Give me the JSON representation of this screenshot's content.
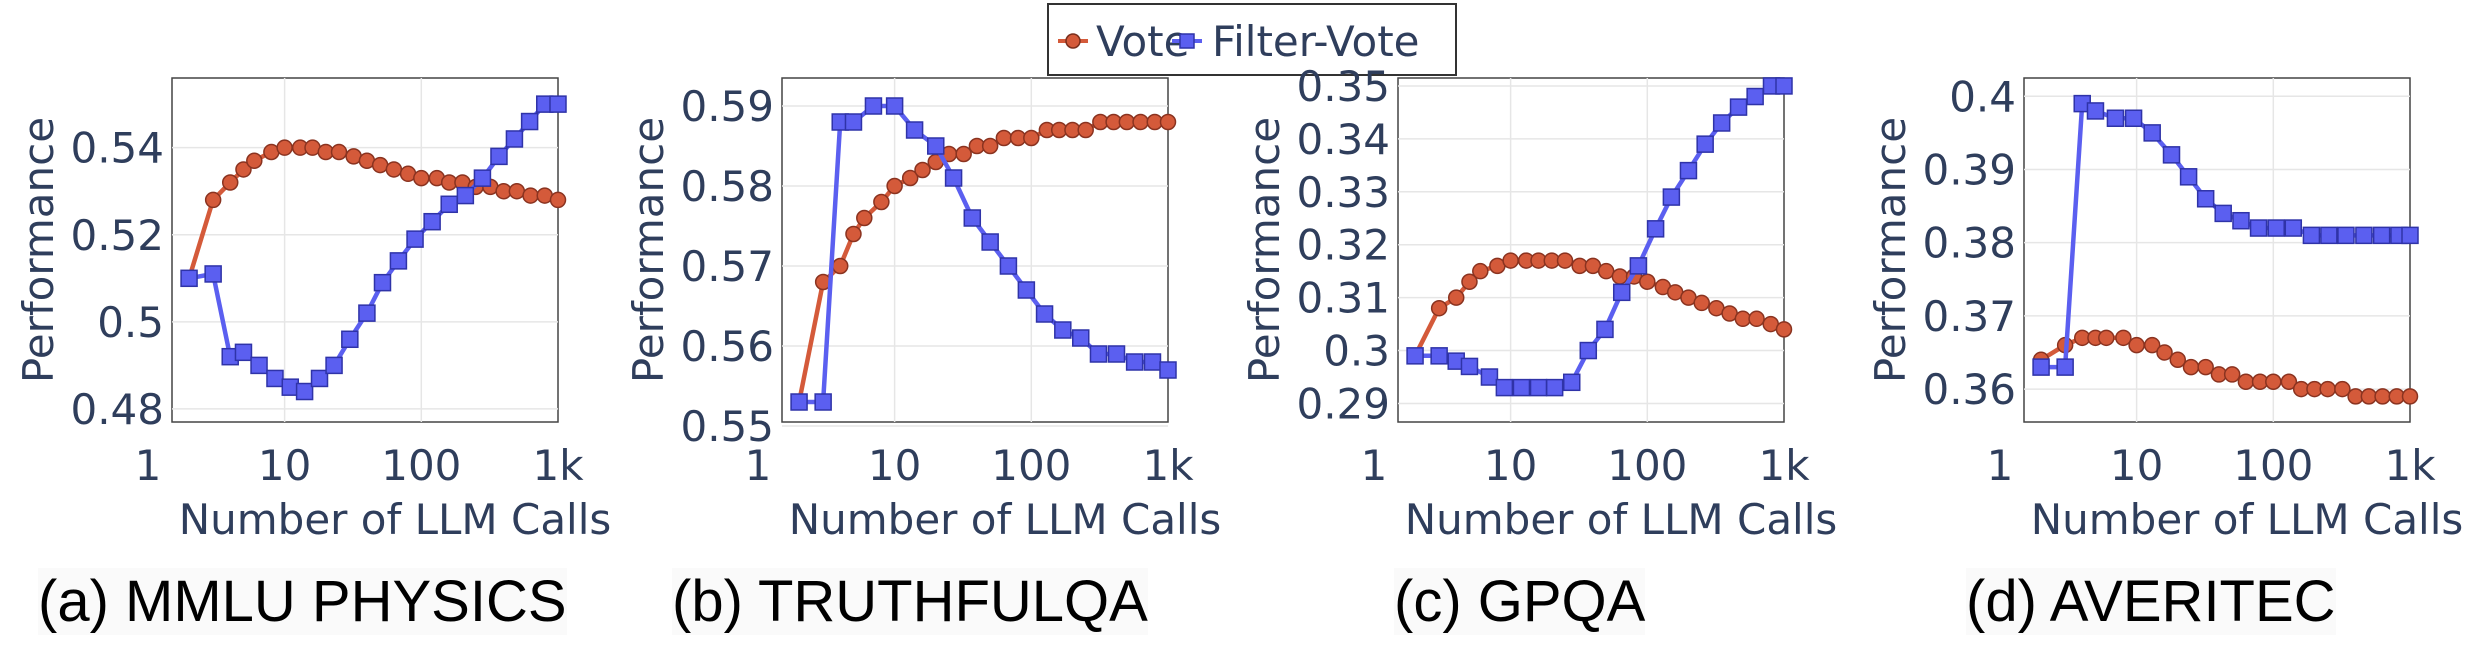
{
  "legend": {
    "items": [
      {
        "label": "Vote",
        "color": "#d45a3a",
        "marker": "circle"
      },
      {
        "label": "Filter-Vote",
        "color": "#5b5ff0",
        "marker": "square"
      }
    ],
    "placement": "top-center"
  },
  "colors": {
    "vote": "#d45a3a",
    "filter_vote": "#5b5ff0",
    "axis_text": "#2f3e5c",
    "grid": "#e6e6e6"
  },
  "chart_data": [
    {
      "type": "line",
      "caption": "(a) MMLU PHYSICS",
      "xlabel": "Number of LLM Calls",
      "ylabel": "Performance",
      "xscale": "log",
      "xlim": [
        1.5,
        1000
      ],
      "xticks": [
        1,
        10,
        100,
        1000
      ],
      "xtick_labels": [
        "1",
        "10",
        "100",
        "1k"
      ],
      "ylim": [
        0.477,
        0.556
      ],
      "yticks": [
        0.48,
        0.5,
        0.52,
        0.54
      ],
      "ytick_labels": [
        "0.48",
        "0.5",
        "0.52",
        "0.54"
      ],
      "grid": true,
      "series": [
        {
          "name": "Vote",
          "x": [
            2,
            3,
            4,
            5,
            6,
            8,
            10,
            13,
            16,
            20,
            25,
            32,
            40,
            50,
            63,
            80,
            100,
            130,
            160,
            200,
            250,
            320,
            400,
            500,
            630,
            800,
            1000
          ],
          "y": [
            0.51,
            0.528,
            0.532,
            0.535,
            0.537,
            0.539,
            0.54,
            0.54,
            0.54,
            0.539,
            0.539,
            0.538,
            0.537,
            0.536,
            0.535,
            0.534,
            0.533,
            0.533,
            0.532,
            0.532,
            0.531,
            0.531,
            0.53,
            0.53,
            0.529,
            0.529,
            0.528
          ]
        },
        {
          "name": "Filter-Vote",
          "x": [
            2,
            3,
            4,
            5,
            6.5,
            8.5,
            11,
            14,
            18,
            23,
            30,
            40,
            52,
            68,
            90,
            120,
            160,
            210,
            280,
            370,
            480,
            620,
            800,
            1000
          ],
          "y": [
            0.51,
            0.511,
            0.492,
            0.493,
            0.49,
            0.487,
            0.485,
            0.484,
            0.487,
            0.49,
            0.496,
            0.502,
            0.509,
            0.514,
            0.519,
            0.523,
            0.527,
            0.529,
            0.533,
            0.538,
            0.542,
            0.546,
            0.55,
            0.55
          ]
        }
      ]
    },
    {
      "type": "line",
      "caption": "(b) TRUTHFULQA",
      "xlabel": "Number of LLM Calls",
      "ylabel": "Performance",
      "xscale": "log",
      "xlim": [
        1.5,
        1000
      ],
      "xticks": [
        1,
        10,
        100,
        1000
      ],
      "xtick_labels": [
        "1",
        "10",
        "100",
        "1k"
      ],
      "ylim": [
        0.5505,
        0.5935
      ],
      "yticks": [
        0.55,
        0.56,
        0.57,
        0.58,
        0.59
      ],
      "ytick_labels": [
        "0.55",
        "0.56",
        "0.57",
        "0.58",
        "0.59"
      ],
      "grid": true,
      "series": [
        {
          "name": "Vote",
          "x": [
            2,
            3,
            4,
            5,
            6,
            8,
            10,
            13,
            16,
            20,
            25,
            32,
            40,
            50,
            63,
            80,
            100,
            130,
            160,
            200,
            250,
            320,
            400,
            500,
            630,
            800,
            1000
          ],
          "y": [
            0.553,
            0.568,
            0.57,
            0.574,
            0.576,
            0.578,
            0.58,
            0.581,
            0.582,
            0.583,
            0.584,
            0.584,
            0.585,
            0.585,
            0.586,
            0.586,
            0.586,
            0.587,
            0.587,
            0.587,
            0.587,
            0.588,
            0.588,
            0.588,
            0.588,
            0.588,
            0.588
          ]
        },
        {
          "name": "Filter-Vote",
          "x": [
            2,
            3,
            4,
            5,
            7,
            10,
            14,
            20,
            27,
            37,
            50,
            68,
            92,
            125,
            170,
            230,
            310,
            420,
            570,
            770,
            1000
          ],
          "y": [
            0.553,
            0.553,
            0.588,
            0.588,
            0.59,
            0.59,
            0.587,
            0.585,
            0.581,
            0.576,
            0.573,
            0.57,
            0.567,
            0.564,
            0.562,
            0.561,
            0.559,
            0.559,
            0.558,
            0.558,
            0.557
          ]
        }
      ]
    },
    {
      "type": "line",
      "caption": "(c) GPQA",
      "xlabel": "Number of LLM Calls",
      "ylabel": "Performance",
      "xscale": "log",
      "xlim": [
        1.5,
        1000
      ],
      "xticks": [
        1,
        10,
        100,
        1000
      ],
      "xtick_labels": [
        "1",
        "10",
        "100",
        "1k"
      ],
      "ylim": [
        0.2865,
        0.3515
      ],
      "yticks": [
        0.29,
        0.3,
        0.31,
        0.32,
        0.33,
        0.34,
        0.35
      ],
      "ytick_labels": [
        "0.29",
        "0.3",
        "0.31",
        "0.32",
        "0.33",
        "0.34",
        "0.35"
      ],
      "grid": true,
      "series": [
        {
          "name": "Vote",
          "x": [
            2,
            3,
            4,
            5,
            6,
            8,
            10,
            13,
            16,
            20,
            25,
            32,
            40,
            50,
            63,
            80,
            100,
            130,
            160,
            200,
            250,
            320,
            400,
            500,
            630,
            800,
            1000
          ],
          "y": [
            0.299,
            0.308,
            0.31,
            0.313,
            0.315,
            0.316,
            0.317,
            0.317,
            0.317,
            0.317,
            0.317,
            0.316,
            0.316,
            0.315,
            0.314,
            0.314,
            0.313,
            0.312,
            0.311,
            0.31,
            0.309,
            0.308,
            0.307,
            0.306,
            0.306,
            0.305,
            0.304
          ]
        },
        {
          "name": "Filter-Vote",
          "x": [
            2,
            3,
            4,
            5,
            7,
            9,
            12,
            16,
            21,
            28,
            37,
            49,
            65,
            86,
            115,
            150,
            200,
            265,
            350,
            465,
            615,
            810,
            1000
          ],
          "y": [
            0.299,
            0.299,
            0.298,
            0.297,
            0.295,
            0.293,
            0.293,
            0.293,
            0.293,
            0.294,
            0.3,
            0.304,
            0.311,
            0.316,
            0.323,
            0.329,
            0.334,
            0.339,
            0.343,
            0.346,
            0.348,
            0.35,
            0.35
          ]
        }
      ]
    },
    {
      "type": "line",
      "caption": "(d) AVERITEC",
      "xlabel": "Number of LLM Calls",
      "ylabel": "Performance",
      "xscale": "log",
      "xlim": [
        1.5,
        1000
      ],
      "xticks": [
        1,
        10,
        100,
        1000
      ],
      "xtick_labels": [
        "1",
        "10",
        "100",
        "1k"
      ],
      "ylim": [
        0.3555,
        0.4025
      ],
      "yticks": [
        0.36,
        0.37,
        0.38,
        0.39,
        0.4
      ],
      "ytick_labels": [
        "0.36",
        "0.37",
        "0.38",
        "0.39",
        "0.4"
      ],
      "grid": true,
      "series": [
        {
          "name": "Vote",
          "x": [
            2,
            3,
            4,
            5,
            6,
            8,
            10,
            13,
            16,
            20,
            25,
            32,
            40,
            50,
            63,
            80,
            100,
            130,
            160,
            200,
            250,
            320,
            400,
            500,
            630,
            800,
            1000
          ],
          "y": [
            0.364,
            0.366,
            0.367,
            0.367,
            0.367,
            0.367,
            0.366,
            0.366,
            0.365,
            0.364,
            0.363,
            0.363,
            0.362,
            0.362,
            0.361,
            0.361,
            0.361,
            0.361,
            0.36,
            0.36,
            0.36,
            0.36,
            0.359,
            0.359,
            0.359,
            0.359,
            0.359
          ]
        },
        {
          "name": "Filter-Vote",
          "x": [
            2,
            3,
            4,
            5,
            7,
            9.5,
            13,
            18,
            24,
            32,
            43,
            58,
            78,
            105,
            140,
            190,
            255,
            340,
            460,
            620,
            830,
            1000
          ],
          "y": [
            0.363,
            0.363,
            0.399,
            0.398,
            0.397,
            0.397,
            0.395,
            0.392,
            0.389,
            0.386,
            0.384,
            0.383,
            0.382,
            0.382,
            0.382,
            0.381,
            0.381,
            0.381,
            0.381,
            0.381,
            0.381,
            0.381
          ]
        }
      ]
    }
  ]
}
